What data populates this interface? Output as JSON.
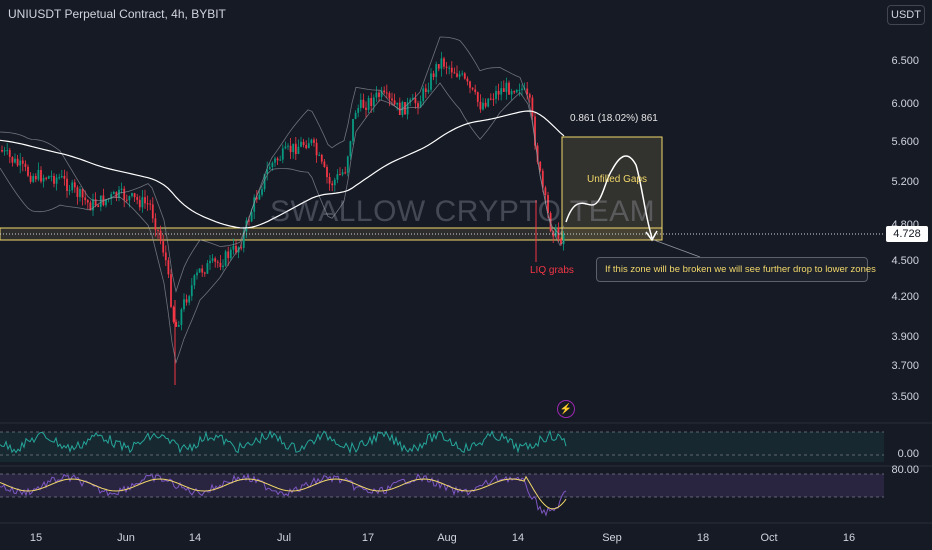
{
  "header": {
    "title": "UNIUSDT Perpetual Contract, 4h, BYBIT",
    "currency_button": "USDT"
  },
  "watermark": "SWALLOW CRYPTO TEAM",
  "price_axis": [
    "6.500",
    "6.000",
    "5.600",
    "5.200",
    "4.800",
    "4.500",
    "4.200",
    "3.900",
    "3.700",
    "3.500"
  ],
  "current_price": "4.728",
  "oscillator_axis": [
    "0.00",
    "80.00"
  ],
  "time_axis": [
    "15",
    "Jun",
    "14",
    "Jul",
    "17",
    "Aug",
    "14",
    "Sep",
    "18",
    "Oct",
    "16"
  ],
  "annotations": {
    "measure": "0.861 (18.02%) 861",
    "unfilled_gaps": "Unfilled Gaps",
    "liq_grabs": "LIQ grabs",
    "callout": "If this zone will be broken we will see further drop to lower zones"
  },
  "lightning_icon": "lightning-icon",
  "colors": {
    "background": "#161a25",
    "up_candle": "#089981",
    "down_candle": "#f23645",
    "zone": "#f2d86a",
    "oscillator_line": "#26a69a",
    "stoch_line": "#7e57c2",
    "ma_line": "#ffffff"
  },
  "chart_data": {
    "type": "candlestick",
    "title": "UNIUSDT Perpetual Contract, 4h, BYBIT",
    "x_ticks": [
      "15",
      "Jun",
      "14",
      "Jul",
      "17",
      "Aug",
      "14",
      "Sep",
      "18",
      "Oct",
      "16"
    ],
    "y_ticks": [
      6.5,
      6.0,
      5.6,
      5.2,
      4.8,
      4.5,
      4.2,
      3.9,
      3.7,
      3.5
    ],
    "ylim": [
      3.4,
      6.85
    ],
    "series": [
      {
        "x": "15",
        "close": 5.45
      },
      {
        "x": "Jun",
        "close": 5.2
      },
      {
        "x": "14",
        "close": 4.75
      },
      {
        "x": "Jul",
        "close": 5.7
      },
      {
        "x": "17",
        "close": 5.35
      },
      {
        "x": "Aug",
        "close": 6.3
      },
      {
        "x": "14",
        "close": 5.7
      },
      {
        "x": "14",
        "close": 4.728
      }
    ],
    "last_price": 4.728,
    "zone": [
      4.7,
      4.78
    ],
    "lows": [
      {
        "x": "14",
        "low": 3.62
      }
    ]
  }
}
